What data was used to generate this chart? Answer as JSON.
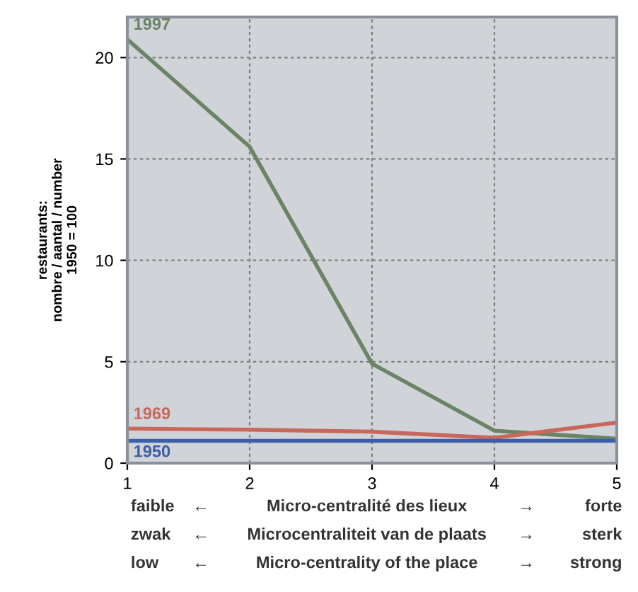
{
  "chart_data": {
    "type": "line",
    "ylabel": "restaurants:\nnombre / aantal / number\n1950 = 100",
    "x": [
      1,
      2,
      3,
      4,
      5
    ],
    "xlim": [
      1,
      5
    ],
    "xticks": [
      1,
      2,
      3,
      4,
      5
    ],
    "ylim": [
      0,
      22
    ],
    "yticks": [
      0,
      5,
      10,
      15,
      20
    ],
    "grid": true,
    "legend": false,
    "series": [
      {
        "name": "1997",
        "color": "#6b8465",
        "values": [
          20.9,
          15.6,
          4.9,
          1.6,
          1.2
        ]
      },
      {
        "name": "1969",
        "color": "#c8675c",
        "values": [
          1.7,
          1.65,
          1.55,
          1.25,
          2.0
        ]
      },
      {
        "name": "1950",
        "color": "#3a5fa8",
        "values": [
          1.1,
          1.1,
          1.1,
          1.1,
          1.1
        ]
      }
    ],
    "annotations": [
      "faible",
      "←",
      "Micro-centralité des lieux",
      "→",
      "forte",
      "zwak",
      "←",
      "Microcentraliteit van de plaats",
      "→",
      "sterk",
      "low",
      "←",
      "Micro-centrality of the place",
      "→",
      "strong"
    ]
  }
}
